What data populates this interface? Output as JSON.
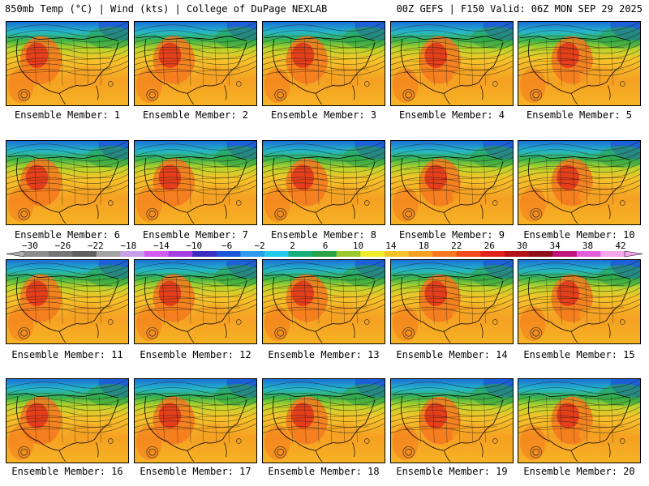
{
  "header": {
    "left": "850mb Temp (°C) | Wind (kts) | College of DuPage NEXLAB",
    "right": "00Z GEFS | F150 Valid: 06Z MON SEP 29 2025"
  },
  "member_label_prefix": "Ensemble Member: ",
  "members": [
    "1",
    "2",
    "3",
    "4",
    "5",
    "6",
    "7",
    "8",
    "9",
    "10",
    "11",
    "12",
    "13",
    "14",
    "15",
    "16",
    "17",
    "18",
    "19",
    "20"
  ],
  "colorbar": {
    "tick_labels": [
      "−30",
      "−26",
      "−22",
      "−18",
      "−14",
      "−10",
      "−6",
      "−2",
      "2",
      "6",
      "10",
      "14",
      "18",
      "22",
      "26",
      "30",
      "34",
      "38",
      "42"
    ],
    "colors": [
      "#8c8c8c",
      "#767676",
      "#5f5f5f",
      "#a3a3a3",
      "#c9a0e8",
      "#d35cf0",
      "#a43fe0",
      "#3b2fbf",
      "#1d57d8",
      "#2c9bea",
      "#24c8e8",
      "#17b07a",
      "#2aa245",
      "#9ac82c",
      "#f0ec2c",
      "#f6c42a",
      "#f5a023",
      "#f4781e",
      "#f24b1c",
      "#e0221a",
      "#b41217",
      "#8d0f1a",
      "#c0167e",
      "#e35fd9",
      "#f6a8ee"
    ]
  }
}
